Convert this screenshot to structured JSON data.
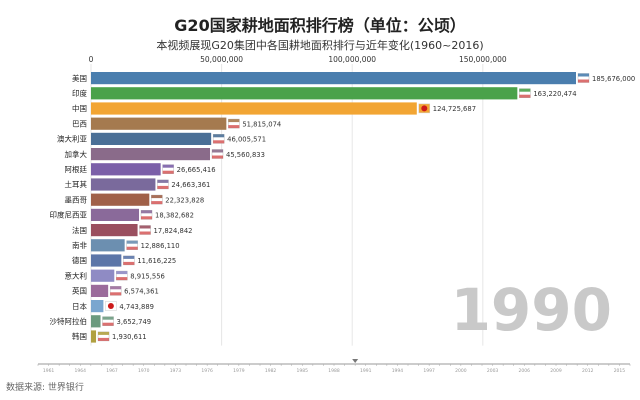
{
  "chart_data": {
    "type": "bar",
    "title": "G20国家耕地面积排行榜（单位：公顷）",
    "subtitle": "本视频展现G20集团中各国耕地面积排行与近年变化(1960~2016)",
    "year": "1990",
    "source": "数据来源: 世界银行",
    "xlim": [
      0,
      185676000
    ],
    "x_ticks": [
      0,
      50000000,
      100000000,
      150000000
    ],
    "x_tick_labels": [
      "0",
      "50,000,000",
      "100,000,000",
      "150,000,000"
    ],
    "categories": [
      "美国",
      "印度",
      "中国",
      "巴西",
      "澳大利亚",
      "加拿大",
      "阿根廷",
      "土耳其",
      "墨西哥",
      "印度尼西亚",
      "法国",
      "南非",
      "德国",
      "意大利",
      "英国",
      "日本",
      "沙特阿拉伯",
      "韩国"
    ],
    "values": [
      185676000,
      163220474,
      124725687,
      51815074,
      46005571,
      45560833,
      26665416,
      24663361,
      22323828,
      18382682,
      17824842,
      12886110,
      11616225,
      8915556,
      6574361,
      4743889,
      3652749,
      1930611
    ],
    "value_labels": [
      "185,676,000",
      "163,220,474",
      "124,725,687",
      "51,815,074",
      "46,005,571",
      "45,560,833",
      "26,665,416",
      "24,663,361",
      "22,323,828",
      "18,382,682",
      "17,824,842",
      "12,886,110",
      "11,616,225",
      "8,915,556",
      "6,574,361",
      "4,743,889",
      "3,652,749",
      "1,930,611"
    ],
    "colors": [
      "#4a7eae",
      "#4aa24a",
      "#f2a533",
      "#a57a4f",
      "#4a6f96",
      "#8a6b8a",
      "#7b5fa8",
      "#7a6a9c",
      "#a06048",
      "#8a6a9a",
      "#9a4f5f",
      "#6c8fb0",
      "#5c76a8",
      "#8f8bc4",
      "#9b6b9b",
      "#7aa6cf",
      "#6b9a7f",
      "#b0a040"
    ],
    "timeline": {
      "start": 1960,
      "end": 2016,
      "current": 1990,
      "labeled_years": [
        1961,
        1964,
        1967,
        1970,
        1973,
        1976,
        1979,
        1982,
        1985,
        1988,
        1991,
        1994,
        1997,
        2000,
        2003,
        2006,
        2009,
        2012,
        2015
      ]
    }
  }
}
